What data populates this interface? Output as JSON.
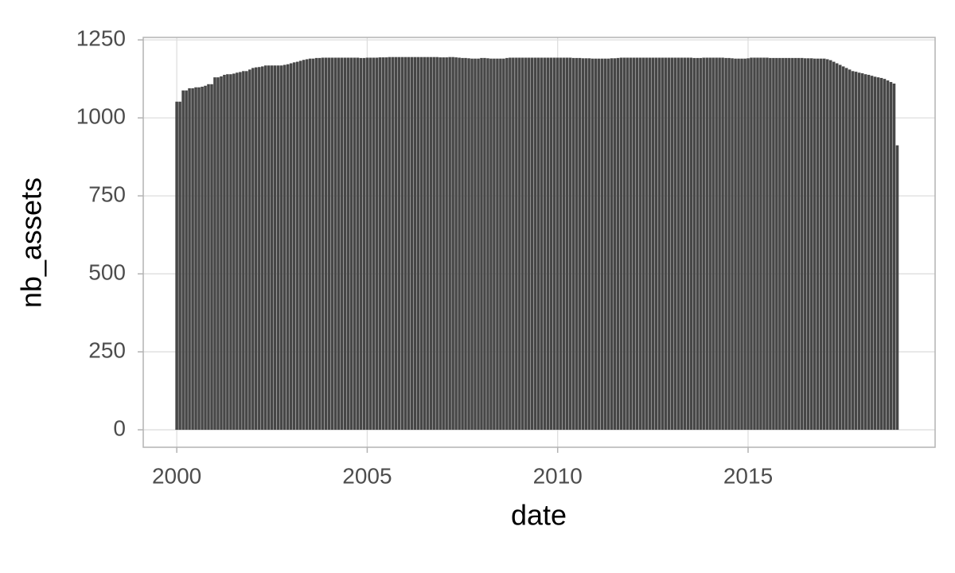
{
  "chart_data": {
    "type": "bar",
    "x_label": "date",
    "y_label": "nb_assets",
    "color": "#474747",
    "grid": true,
    "xlim": [
      1999.12,
      2019.91
    ],
    "ylim": [
      -56,
      1258
    ],
    "xticks": [
      2000,
      2005,
      2010,
      2015
    ],
    "yticks": [
      0,
      250,
      500,
      750,
      1000,
      1250
    ],
    "x": [
      2000,
      2000.083,
      2000.167,
      2000.25,
      2000.333,
      2000.417,
      2000.5,
      2000.583,
      2000.667,
      2000.75,
      2000.833,
      2000.917,
      2001,
      2001.083,
      2001.167,
      2001.25,
      2001.333,
      2001.417,
      2001.5,
      2001.583,
      2001.667,
      2001.75,
      2001.833,
      2001.917,
      2002,
      2002.083,
      2002.167,
      2002.25,
      2002.333,
      2002.417,
      2002.5,
      2002.583,
      2002.667,
      2002.75,
      2002.833,
      2002.917,
      2003,
      2003.083,
      2003.167,
      2003.25,
      2003.333,
      2003.417,
      2003.5,
      2003.583,
      2003.667,
      2003.75,
      2003.833,
      2003.917,
      2004,
      2004.083,
      2004.167,
      2004.25,
      2004.333,
      2004.417,
      2004.5,
      2004.583,
      2004.667,
      2004.75,
      2004.833,
      2004.917,
      2005,
      2005.083,
      2005.167,
      2005.25,
      2005.333,
      2005.417,
      2005.5,
      2005.583,
      2005.667,
      2005.75,
      2005.833,
      2005.917,
      2006,
      2006.083,
      2006.167,
      2006.25,
      2006.333,
      2006.417,
      2006.5,
      2006.583,
      2006.667,
      2006.75,
      2006.833,
      2006.917,
      2007,
      2007.083,
      2007.167,
      2007.25,
      2007.333,
      2007.417,
      2007.5,
      2007.583,
      2007.667,
      2007.75,
      2007.833,
      2007.917,
      2008,
      2008.083,
      2008.167,
      2008.25,
      2008.333,
      2008.417,
      2008.5,
      2008.583,
      2008.667,
      2008.75,
      2008.833,
      2008.917,
      2009,
      2009.083,
      2009.167,
      2009.25,
      2009.333,
      2009.417,
      2009.5,
      2009.583,
      2009.667,
      2009.75,
      2009.833,
      2009.917,
      2010,
      2010.083,
      2010.167,
      2010.25,
      2010.333,
      2010.417,
      2010.5,
      2010.583,
      2010.667,
      2010.75,
      2010.833,
      2010.917,
      2011,
      2011.083,
      2011.167,
      2011.25,
      2011.333,
      2011.417,
      2011.5,
      2011.583,
      2011.667,
      2011.75,
      2011.833,
      2011.917,
      2012,
      2012.083,
      2012.167,
      2012.25,
      2012.333,
      2012.417,
      2012.5,
      2012.583,
      2012.667,
      2012.75,
      2012.833,
      2012.917,
      2013,
      2013.083,
      2013.167,
      2013.25,
      2013.333,
      2013.417,
      2013.5,
      2013.583,
      2013.667,
      2013.75,
      2013.833,
      2013.917,
      2014,
      2014.083,
      2014.167,
      2014.25,
      2014.333,
      2014.417,
      2014.5,
      2014.583,
      2014.667,
      2014.75,
      2014.833,
      2014.917,
      2015,
      2015.083,
      2015.167,
      2015.25,
      2015.333,
      2015.417,
      2015.5,
      2015.583,
      2015.667,
      2015.75,
      2015.833,
      2015.917,
      2016,
      2016.083,
      2016.167,
      2016.25,
      2016.333,
      2016.417,
      2016.5,
      2016.583,
      2016.667,
      2016.75,
      2016.833,
      2016.917,
      2017,
      2017.083,
      2017.167,
      2017.25,
      2017.333,
      2017.417,
      2017.5,
      2017.583,
      2017.667,
      2017.75,
      2017.833,
      2017.917,
      2018,
      2018.083,
      2018.167,
      2018.25,
      2018.333,
      2018.417,
      2018.5,
      2018.583,
      2018.667,
      2018.75,
      2018.833,
      2018.917
    ],
    "values": [
      1052,
      1052,
      1088,
      1088,
      1095,
      1095,
      1098,
      1098,
      1100,
      1103,
      1108,
      1108,
      1130,
      1130,
      1133,
      1138,
      1140,
      1140,
      1142,
      1145,
      1147,
      1150,
      1150,
      1155,
      1160,
      1162,
      1163,
      1165,
      1168,
      1168,
      1168,
      1168,
      1168,
      1168,
      1170,
      1172,
      1175,
      1178,
      1180,
      1183,
      1186,
      1188,
      1190,
      1190,
      1192,
      1192,
      1193,
      1193,
      1193,
      1193,
      1193,
      1193,
      1193,
      1193,
      1193,
      1193,
      1193,
      1193,
      1192,
      1192,
      1193,
      1193,
      1193,
      1193,
      1194,
      1194,
      1194,
      1195,
      1195,
      1195,
      1195,
      1195,
      1195,
      1195,
      1195,
      1195,
      1195,
      1195,
      1195,
      1195,
      1195,
      1195,
      1195,
      1194,
      1194,
      1194,
      1195,
      1195,
      1194,
      1193,
      1192,
      1192,
      1191,
      1190,
      1190,
      1190,
      1192,
      1192,
      1191,
      1190,
      1190,
      1190,
      1190,
      1190,
      1192,
      1193,
      1193,
      1193,
      1193,
      1193,
      1193,
      1193,
      1193,
      1193,
      1193,
      1193,
      1193,
      1193,
      1193,
      1193,
      1193,
      1193,
      1193,
      1193,
      1193,
      1192,
      1192,
      1192,
      1191,
      1191,
      1191,
      1190,
      1190,
      1190,
      1190,
      1190,
      1190,
      1191,
      1191,
      1192,
      1193,
      1193,
      1193,
      1193,
      1193,
      1193,
      1193,
      1193,
      1193,
      1193,
      1193,
      1193,
      1193,
      1193,
      1193,
      1193,
      1193,
      1193,
      1193,
      1193,
      1193,
      1193,
      1193,
      1192,
      1192,
      1192,
      1193,
      1193,
      1193,
      1193,
      1193,
      1193,
      1193,
      1192,
      1192,
      1191,
      1190,
      1190,
      1190,
      1190,
      1191,
      1193,
      1193,
      1193,
      1193,
      1193,
      1193,
      1192,
      1192,
      1192,
      1192,
      1192,
      1192,
      1192,
      1192,
      1192,
      1192,
      1192,
      1191,
      1191,
      1191,
      1190,
      1190,
      1190,
      1190,
      1188,
      1185,
      1180,
      1175,
      1170,
      1165,
      1160,
      1155,
      1150,
      1148,
      1145,
      1143,
      1140,
      1138,
      1135,
      1132,
      1130,
      1128,
      1125,
      1120,
      1115,
      1110,
      912
    ]
  }
}
